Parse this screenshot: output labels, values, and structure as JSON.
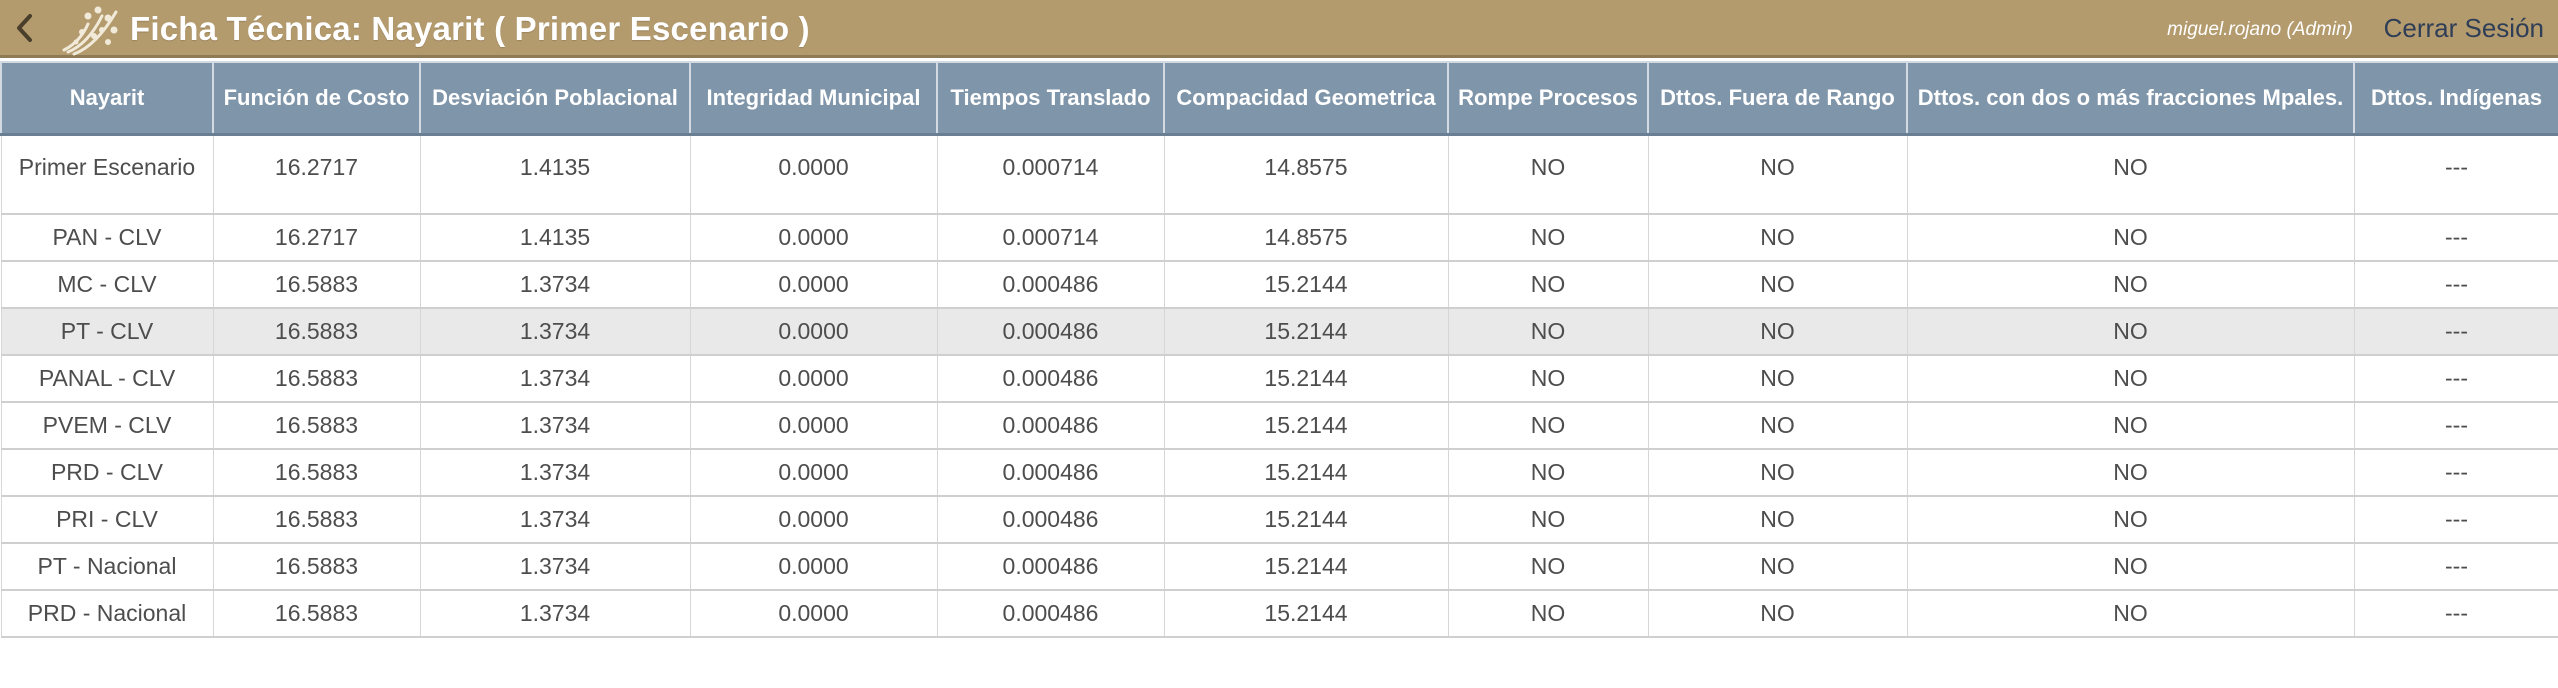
{
  "header": {
    "title": "Ficha Técnica: Nayarit ( Primer Escenario )",
    "user": "miguel.rojano (Admin)",
    "logout_label": "Cerrar Sesión",
    "back_icon": "chevron-left-icon",
    "logo_icon": "app-logo-icon"
  },
  "colors": {
    "topbar": "#b49b6e",
    "table_header": "#7f95aa",
    "logout_text": "#2f3e57",
    "highlight_row": "#e9e9e9"
  },
  "table": {
    "columns": [
      "Nayarit",
      "Función de Costo",
      "Desviación Poblacional",
      "Integridad Municipal",
      "Tiempos Translado",
      "Compacidad Geometrica",
      "Rompe Procesos",
      "Dttos. Fuera de Rango",
      "Dttos. con dos o más fracciones Mpales.",
      "Dttos. Indígenas"
    ],
    "highlighted_row": 3,
    "rows": [
      [
        "Primer Escenario",
        "16.2717",
        "1.4135",
        "0.0000",
        "0.000714",
        "14.8575",
        "NO",
        "NO",
        "NO",
        "---"
      ],
      [
        "PAN - CLV",
        "16.2717",
        "1.4135",
        "0.0000",
        "0.000714",
        "14.8575",
        "NO",
        "NO",
        "NO",
        "---"
      ],
      [
        "MC - CLV",
        "16.5883",
        "1.3734",
        "0.0000",
        "0.000486",
        "15.2144",
        "NO",
        "NO",
        "NO",
        "---"
      ],
      [
        "PT - CLV",
        "16.5883",
        "1.3734",
        "0.0000",
        "0.000486",
        "15.2144",
        "NO",
        "NO",
        "NO",
        "---"
      ],
      [
        "PANAL - CLV",
        "16.5883",
        "1.3734",
        "0.0000",
        "0.000486",
        "15.2144",
        "NO",
        "NO",
        "NO",
        "---"
      ],
      [
        "PVEM - CLV",
        "16.5883",
        "1.3734",
        "0.0000",
        "0.000486",
        "15.2144",
        "NO",
        "NO",
        "NO",
        "---"
      ],
      [
        "PRD - CLV",
        "16.5883",
        "1.3734",
        "0.0000",
        "0.000486",
        "15.2144",
        "NO",
        "NO",
        "NO",
        "---"
      ],
      [
        "PRI - CLV",
        "16.5883",
        "1.3734",
        "0.0000",
        "0.000486",
        "15.2144",
        "NO",
        "NO",
        "NO",
        "---"
      ],
      [
        "PT - Nacional",
        "16.5883",
        "1.3734",
        "0.0000",
        "0.000486",
        "15.2144",
        "NO",
        "NO",
        "NO",
        "---"
      ],
      [
        "PRD - Nacional",
        "16.5883",
        "1.3734",
        "0.0000",
        "0.000486",
        "15.2144",
        "NO",
        "NO",
        "NO",
        "---"
      ]
    ]
  }
}
